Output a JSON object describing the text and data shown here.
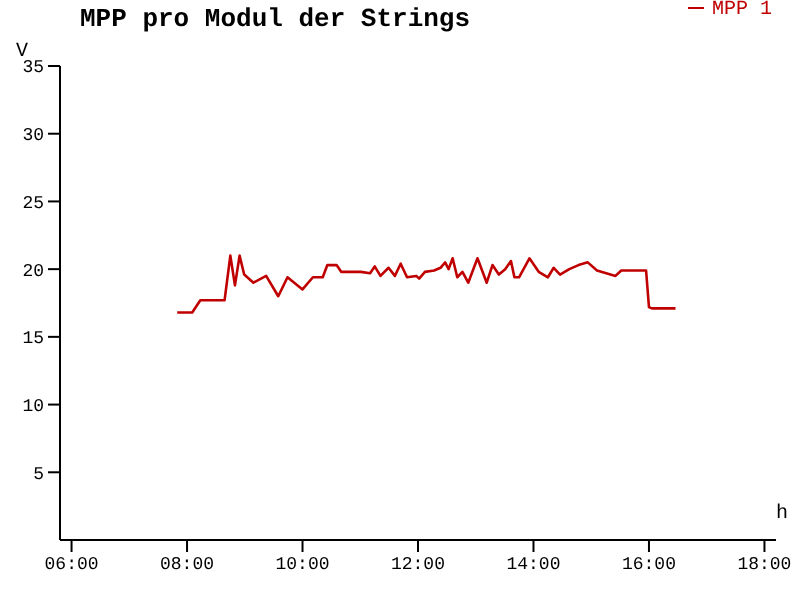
{
  "chart_data": {
    "type": "line",
    "title": "MPP pro Modul der Strings",
    "xlabel": "h",
    "ylabel": "V",
    "x": [
      7.83,
      8.09,
      8.23,
      8.65,
      8.75,
      8.83,
      8.91,
      8.99,
      9.15,
      9.37,
      9.58,
      9.74,
      10.0,
      10.18,
      10.35,
      10.43,
      10.59,
      10.67,
      11.01,
      11.17,
      11.25,
      11.35,
      11.49,
      11.6,
      11.7,
      11.81,
      11.97,
      12.02,
      12.12,
      12.28,
      12.39,
      12.47,
      12.53,
      12.6,
      12.68,
      12.77,
      12.87,
      13.03,
      13.19,
      13.29,
      13.4,
      13.51,
      13.61,
      13.67,
      13.75,
      13.93,
      14.09,
      14.25,
      14.35,
      14.46,
      14.62,
      14.78,
      14.94,
      15.1,
      15.26,
      15.42,
      15.52,
      15.95,
      16.0,
      16.05,
      16.46
    ],
    "series": [
      {
        "name": "MPP 1",
        "color": "#c00000",
        "values": [
          16.8,
          16.8,
          17.7,
          17.7,
          21.0,
          18.8,
          21.0,
          19.6,
          19.0,
          19.5,
          18.0,
          19.4,
          18.5,
          19.4,
          19.4,
          20.3,
          20.3,
          19.8,
          19.8,
          19.7,
          20.2,
          19.5,
          20.1,
          19.5,
          20.4,
          19.4,
          19.5,
          19.3,
          19.8,
          19.9,
          20.1,
          20.5,
          20.0,
          20.8,
          19.4,
          19.8,
          19.0,
          20.8,
          19.0,
          20.3,
          19.6,
          20.0,
          20.6,
          19.4,
          19.4,
          20.8,
          19.8,
          19.4,
          20.1,
          19.6,
          20.0,
          20.3,
          20.5,
          19.9,
          19.7,
          19.5,
          19.9,
          19.9,
          17.2,
          17.1,
          17.1
        ]
      }
    ],
    "xlim": [
      5.8,
      18.2
    ],
    "xticks": [
      {
        "value": 6,
        "label": "06:00"
      },
      {
        "value": 8,
        "label": "08:00"
      },
      {
        "value": 10,
        "label": "10:00"
      },
      {
        "value": 12,
        "label": "12:00"
      },
      {
        "value": 14,
        "label": "14:00"
      },
      {
        "value": 16,
        "label": "16:00"
      },
      {
        "value": 18,
        "label": "18:00"
      }
    ],
    "ylim": [
      0,
      35
    ],
    "yticks": [
      5,
      10,
      15,
      20,
      25,
      30,
      35
    ],
    "grid": false,
    "legend": "top right",
    "marker": "none",
    "line_style": "solid"
  }
}
